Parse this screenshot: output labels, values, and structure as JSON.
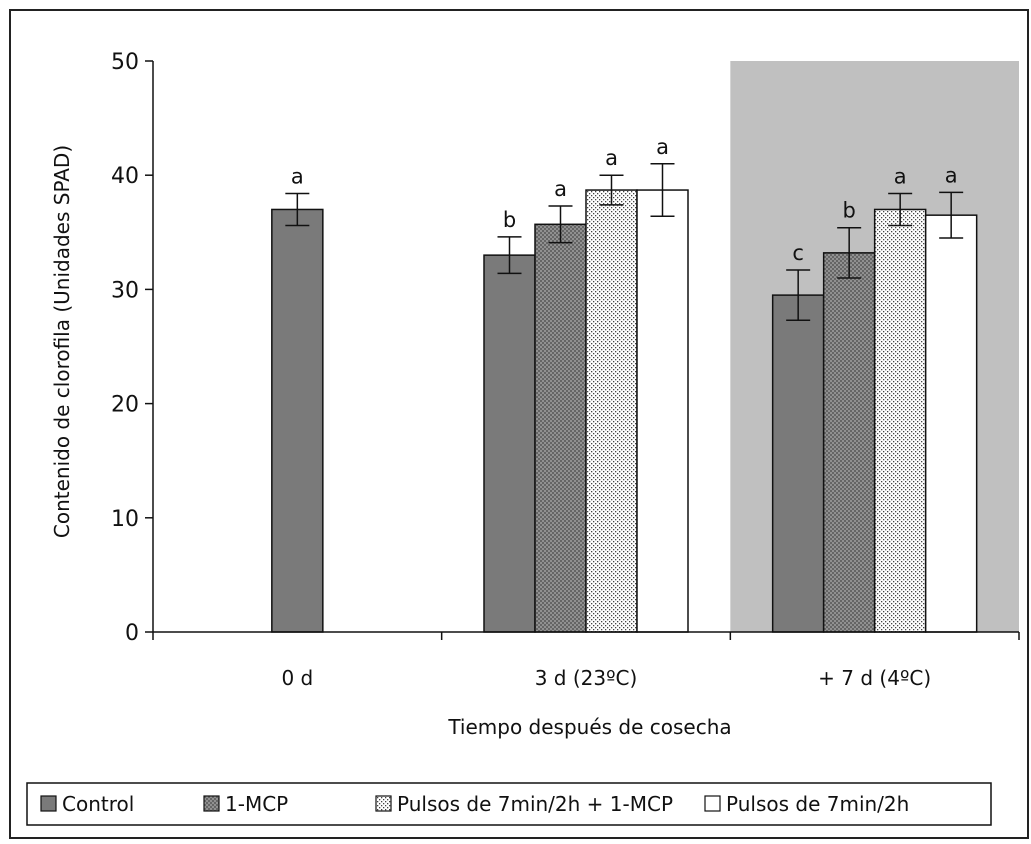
{
  "chart_data": {
    "type": "bar",
    "xlabel": "Tiempo después de cosecha",
    "ylabel": "Contenido de clorofila (Unidades SPAD)",
    "ylim": [
      0,
      50
    ],
    "yticks": [
      0,
      10,
      20,
      30,
      40,
      50
    ],
    "categories": [
      "0 d",
      "3 d (23ºC)",
      "+ 7 d (4ºC)"
    ],
    "grid": false,
    "legend_position": "bottom",
    "shaded_region": {
      "category": "+ 7 d (4ºC)",
      "color": "#c0c0c0"
    },
    "series": [
      {
        "name": "Control",
        "color": "#7a7a7a",
        "pattern": "solid",
        "values": [
          37.0,
          33.0,
          29.5
        ],
        "errors": [
          1.4,
          1.6,
          2.2
        ],
        "labels": [
          "a",
          "b",
          "c"
        ]
      },
      {
        "name": "1-MCP",
        "color": "#a8a8a8",
        "pattern": "cross",
        "values": [
          null,
          35.7,
          33.2
        ],
        "errors": [
          null,
          1.6,
          2.2
        ],
        "labels": [
          null,
          "a",
          "b"
        ]
      },
      {
        "name": "Pulsos de 7min/2h + 1-MCP",
        "color": "#ffffff",
        "pattern": "dots",
        "values": [
          null,
          38.7,
          37.0
        ],
        "errors": [
          null,
          1.3,
          1.4
        ],
        "labels": [
          null,
          "a",
          "a"
        ]
      },
      {
        "name": "Pulsos de 7min/2h",
        "color": "#ffffff",
        "pattern": "solid",
        "values": [
          null,
          38.7,
          36.5
        ],
        "errors": [
          null,
          2.3,
          2.0
        ],
        "labels": [
          null,
          "a",
          "a"
        ]
      }
    ]
  }
}
